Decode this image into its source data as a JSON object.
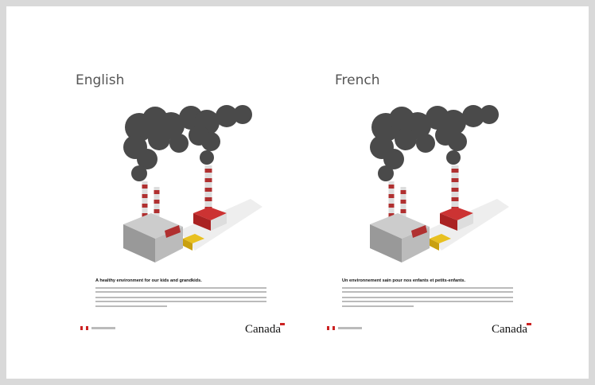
{
  "slide": {
    "panels": [
      {
        "label": "English",
        "headline": "A healthy environment for our kids and grandkids.",
        "wordmark": "Canada"
      },
      {
        "label": "French",
        "headline": "Un environnement sain pour nos enfants et petits-enfants.",
        "wordmark": "Canada"
      }
    ]
  }
}
